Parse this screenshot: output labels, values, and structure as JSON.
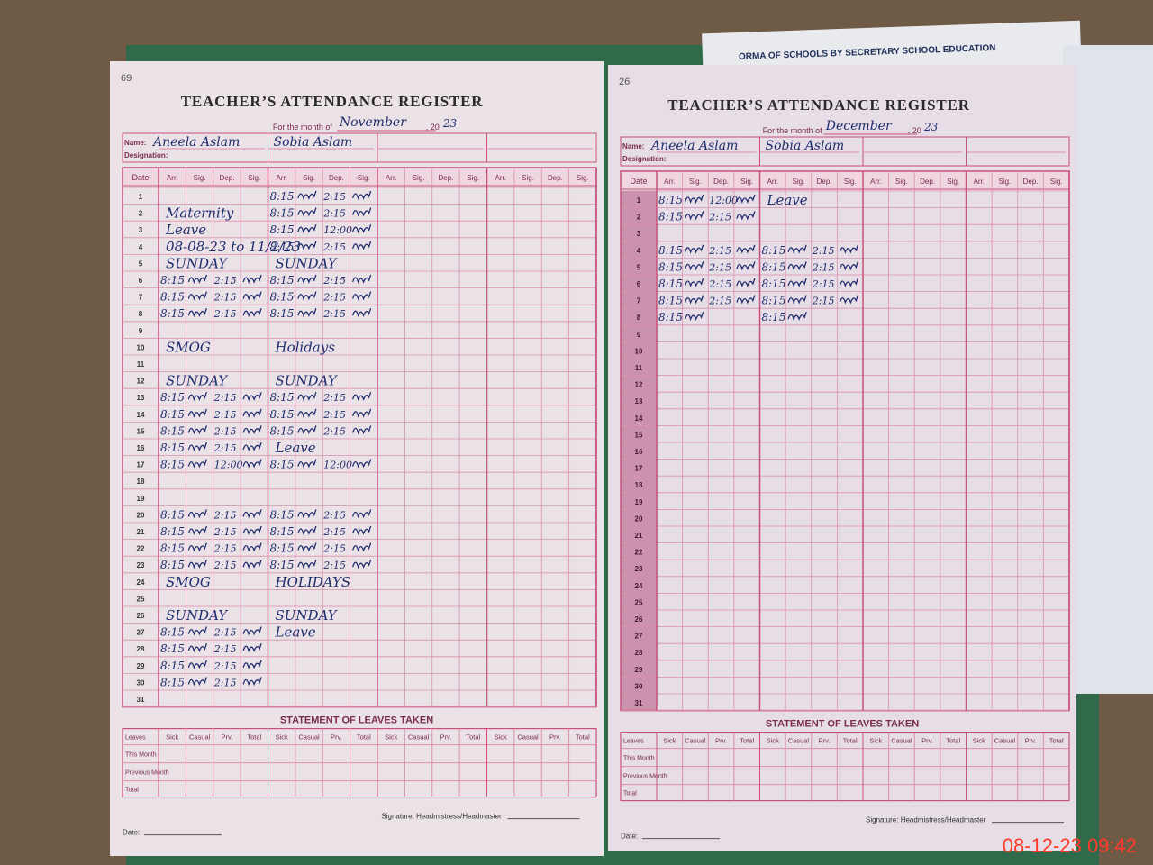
{
  "background_paper": "ORMA OF SCHOOLS BY SECRETARY SCHOOL EDUCATION",
  "stamp": "08-12-23  09:42",
  "statement": {
    "title": "STATEMENT OF LEAVES TAKEN",
    "row_labels": [
      "Leaves",
      "This Month",
      "Previous Month",
      "Total"
    ],
    "col_labels": [
      "Sick",
      "Casual",
      "Prv.",
      "Total"
    ]
  },
  "signature": "Signature: Headmistress/Headmaster",
  "date_label": "Date:",
  "left_page": {
    "corner": "69",
    "title": "TEACHER’S ATTENDANCE REGISTER",
    "month_label": "For the month of",
    "month": "November",
    "year_prefix": ", 20",
    "year": "23",
    "name_label": "Name:",
    "designation_label": "Designation:",
    "date_header": "Date",
    "col_headers": [
      "Arr.",
      "Sig.",
      "Dep.",
      "Sig."
    ],
    "days": [
      1,
      2,
      3,
      4,
      5,
      6,
      7,
      8,
      9,
      10,
      11,
      12,
      13,
      14,
      15,
      16,
      17,
      18,
      19,
      20,
      21,
      22,
      23,
      24,
      25,
      26,
      27,
      28,
      29,
      30,
      31
    ],
    "teachers": [
      {
        "name": "Aneela Aslam",
        "arr": [
          null,
          null,
          null,
          null,
          null,
          "8:15",
          "8:15",
          "8:15",
          null,
          null,
          null,
          null,
          "8:15",
          "8:15",
          "8:15",
          "8:15",
          "8:15",
          null,
          null,
          "8:15",
          "8:15",
          "8:15",
          "8:15",
          null,
          null,
          null,
          "8:15",
          "8:15",
          "8:15",
          "8:15",
          null
        ],
        "dep": [
          null,
          null,
          null,
          null,
          null,
          "2:15",
          "2:15",
          "2:15",
          null,
          null,
          null,
          null,
          "2:15",
          "2:15",
          "2:15",
          "2:15",
          "12:00",
          null,
          null,
          "2:15",
          "2:15",
          "2:15",
          "2:15",
          null,
          null,
          null,
          "2:15",
          "2:15",
          "2:15",
          "2:15",
          null
        ],
        "notes": [
          null,
          "Maternity",
          "Leave",
          "08-08-23 to 11/2/23",
          "SUNDAY",
          null,
          null,
          null,
          null,
          "SMOG",
          null,
          "SUNDAY",
          null,
          null,
          null,
          null,
          null,
          null,
          null,
          null,
          null,
          null,
          null,
          "SMOG",
          null,
          "SUNDAY",
          null,
          null,
          null,
          null,
          null
        ]
      },
      {
        "name": "Sobia Aslam",
        "arr": [
          "8:15",
          "8:15",
          "8:15",
          "8:15",
          null,
          "8:15",
          "8:15",
          "8:15",
          null,
          null,
          null,
          null,
          "8:15",
          "8:15",
          "8:15",
          null,
          "8:15",
          null,
          null,
          "8:15",
          "8:15",
          "8:15",
          "8:15",
          null,
          null,
          null,
          null,
          null,
          null,
          null,
          null
        ],
        "dep": [
          "2:15",
          "2:15",
          "12:00",
          "2:15",
          null,
          "2:15",
          "2:15",
          "2:15",
          null,
          null,
          null,
          null,
          "2:15",
          "2:15",
          "2:15",
          null,
          "12:00",
          null,
          null,
          "2:15",
          "2:15",
          "2:15",
          "2:15",
          null,
          null,
          null,
          null,
          null,
          null,
          null,
          null
        ],
        "notes": [
          null,
          null,
          null,
          null,
          "SUNDAY",
          null,
          null,
          null,
          null,
          "Holidays",
          null,
          "SUNDAY",
          null,
          null,
          null,
          "Leave",
          null,
          null,
          null,
          null,
          null,
          null,
          null,
          "HOLIDAYS",
          null,
          "SUNDAY",
          "Leave",
          null,
          null,
          null,
          null
        ]
      }
    ]
  },
  "right_page": {
    "corner": "26",
    "title": "TEACHER’S ATTENDANCE REGISTER",
    "month_label": "For the month of",
    "month": "December",
    "year_prefix": ", 20",
    "year": "23",
    "name_label": "Name:",
    "designation_label": "Designation:",
    "date_header": "Date",
    "col_headers": [
      "Arr.",
      "Sig.",
      "Dep.",
      "Sig."
    ],
    "days": [
      1,
      2,
      3,
      4,
      5,
      6,
      7,
      8,
      9,
      10,
      11,
      12,
      13,
      14,
      15,
      16,
      17,
      18,
      19,
      20,
      21,
      22,
      23,
      24,
      25,
      26,
      27,
      28,
      29,
      30,
      31
    ],
    "teachers": [
      {
        "name": "Aneela Aslam",
        "arr": [
          "8:15",
          "8:15",
          null,
          "8:15",
          "8:15",
          "8:15",
          "8:15",
          "8:15",
          null,
          null,
          null,
          null,
          null,
          null,
          null,
          null,
          null,
          null,
          null,
          null,
          null,
          null,
          null,
          null,
          null,
          null,
          null,
          null,
          null,
          null,
          null
        ],
        "dep": [
          "12:00",
          "2:15",
          null,
          "2:15",
          "2:15",
          "2:15",
          "2:15",
          null,
          null,
          null,
          null,
          null,
          null,
          null,
          null,
          null,
          null,
          null,
          null,
          null,
          null,
          null,
          null,
          null,
          null,
          null,
          null,
          null,
          null,
          null,
          null
        ]
      },
      {
        "name": "Sobia Aslam",
        "arr": [
          null,
          null,
          null,
          "8:15",
          "8:15",
          "8:15",
          "8:15",
          "8:15",
          null,
          null,
          null,
          null,
          null,
          null,
          null,
          null,
          null,
          null,
          null,
          null,
          null,
          null,
          null,
          null,
          null,
          null,
          null,
          null,
          null,
          null,
          null
        ],
        "dep": [
          null,
          null,
          null,
          "2:15",
          "2:15",
          "2:15",
          "2:15",
          null,
          null,
          null,
          null,
          null,
          null,
          null,
          null,
          null,
          null,
          null,
          null,
          null,
          null,
          null,
          null,
          null,
          null,
          null,
          null,
          null,
          null,
          null,
          null
        ],
        "notes": [
          "Leave",
          null,
          null,
          null,
          null,
          null,
          null,
          null,
          null,
          null,
          null,
          null,
          null,
          null,
          null,
          null,
          null,
          null,
          null,
          null,
          null,
          null,
          null,
          null,
          null,
          null,
          null,
          null,
          null,
          null,
          null
        ]
      }
    ]
  }
}
